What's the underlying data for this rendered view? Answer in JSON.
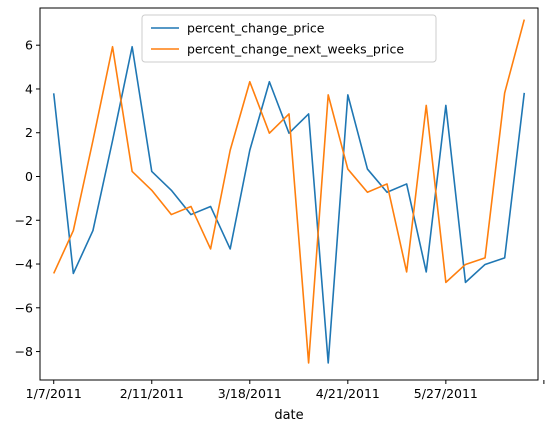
{
  "chart_data": {
    "type": "line",
    "xlabel": "date",
    "ylabel": "",
    "x_tick_labels": [
      "1/7/2011",
      "2/11/2011",
      "3/18/2011",
      "4/21/2011",
      "5/27/2011",
      ""
    ],
    "y_ticks": [
      -8,
      -6,
      -4,
      -2,
      0,
      2,
      4,
      6
    ],
    "y_tick_labels": [
      "−8",
      "−6",
      "−4",
      "−2",
      "0",
      "2",
      "4",
      "6"
    ],
    "ylim": [
      -9.3,
      7.7
    ],
    "xlim": [
      -0.7,
      24.7
    ],
    "grid": false,
    "legend_placement": "upper center",
    "series": [
      {
        "name": "percent_change_price",
        "color": "#1f77b4",
        "values": [
          3.8,
          -4.43,
          -2.47,
          1.64,
          5.93,
          0.23,
          -0.63,
          -1.74,
          -1.37,
          -3.31,
          1.2,
          4.33,
          1.98,
          2.86,
          -8.52,
          3.73,
          0.34,
          -0.72,
          -0.34,
          -4.36,
          3.25,
          -4.84,
          -4.02,
          -3.72,
          3.82
        ]
      },
      {
        "name": "percent_change_next_weeks_price",
        "color": "#ff7f0e",
        "values": [
          -4.43,
          -2.47,
          1.64,
          5.93,
          0.23,
          -0.63,
          -1.74,
          -1.37,
          -3.31,
          1.2,
          4.33,
          1.98,
          2.86,
          -8.52,
          3.73,
          0.34,
          -0.72,
          -0.34,
          -4.36,
          3.25,
          -4.84,
          -4.02,
          -3.72,
          3.82,
          7.17
        ]
      }
    ]
  }
}
